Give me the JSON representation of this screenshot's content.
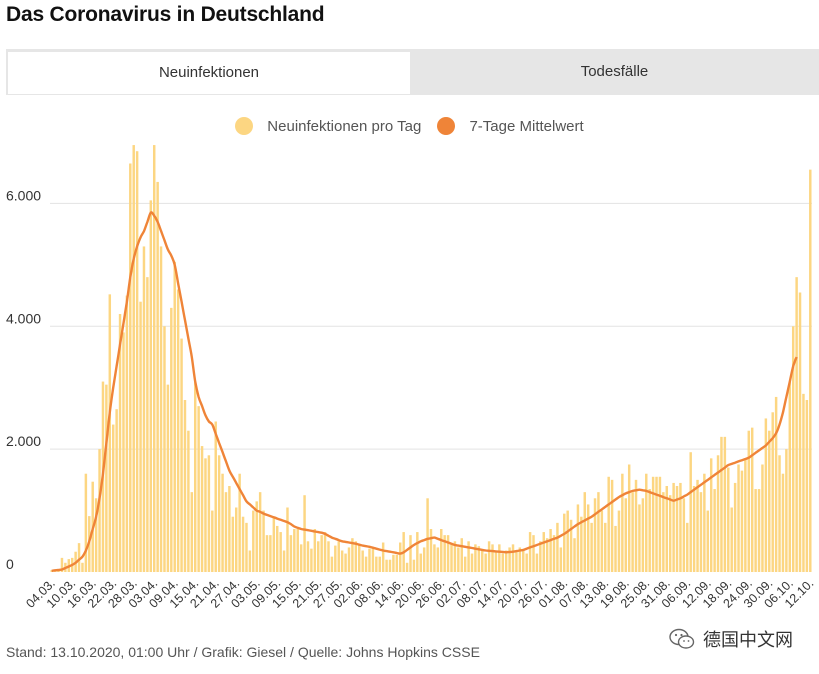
{
  "title": "Das Coronavirus in Deutschland",
  "tabs": [
    {
      "label": "Neuinfektionen",
      "active": true
    },
    {
      "label": "Todesfälle",
      "active": false
    }
  ],
  "legend": [
    {
      "label": "Neuinfektionen pro Tag",
      "color": "#fcd682"
    },
    {
      "label": "7-Tage Mittelwert",
      "color": "#ef8438"
    }
  ],
  "colors": {
    "bar": "#fcd682",
    "line": "#ef8438",
    "grid": "#e3e3e3",
    "axis_text": "#333333"
  },
  "footer": "Stand: 13.10.2020, 01:00 Uhr / Grafik: Giesel / Quelle: Johns Hopkins CSSE",
  "watermark": {
    "text": "德国中文网",
    "icon": "wechat-icon"
  },
  "chart_data": {
    "type": "bar",
    "title": "Das Coronavirus in Deutschland",
    "xlabel": "",
    "ylabel": "",
    "start_date": "2020-03-04",
    "ylim": [
      0,
      7000
    ],
    "y_ticks": [
      0,
      2000,
      4000,
      6000
    ],
    "y_tick_labels": [
      "0",
      "2.000",
      "4.000",
      "6.000"
    ],
    "x_tick_every": 6,
    "x_tick_labels": [
      "04.03.",
      "10.03.",
      "16.03.",
      "22.03.",
      "28.03.",
      "03.04.",
      "09.04.",
      "15.04.",
      "21.04.",
      "27.04.",
      "03.05.",
      "09.05.",
      "15.05.",
      "21.05.",
      "27.05.",
      "02.06.",
      "08.06.",
      "14.06.",
      "20.06.",
      "26.06.",
      "02.07.",
      "08.07.",
      "14.07.",
      "20.07.",
      "26.07.",
      "01.08.",
      "07.08.",
      "13.08.",
      "19.08.",
      "25.08.",
      "31.08.",
      "06.09.",
      "12.09.",
      "18.09.",
      "24.09.",
      "30.09.",
      "06.10.",
      "12.10."
    ],
    "series": [
      {
        "name": "Neuinfektionen pro Tag",
        "type": "bar",
        "values": [
          30,
          40,
          40,
          230,
          150,
          210,
          230,
          330,
          470,
          150,
          1600,
          910,
          1470,
          1200,
          2000,
          3100,
          3050,
          4520,
          2400,
          2650,
          4200,
          3900,
          4500,
          6650,
          6950,
          6850,
          4400,
          5300,
          4800,
          6050,
          6950,
          6350,
          5300,
          4000,
          3050,
          4300,
          5050,
          4600,
          3800,
          2800,
          2300,
          1300,
          3100,
          2700,
          2050,
          1850,
          1900,
          1000,
          2450,
          1900,
          1600,
          1300,
          1400,
          900,
          1050,
          1600,
          900,
          800,
          350,
          1000,
          1150,
          1300,
          1000,
          600,
          600,
          900,
          750,
          650,
          350,
          1050,
          600,
          700,
          700,
          450,
          1250,
          500,
          380,
          700,
          500,
          600,
          650,
          500,
          250,
          430,
          500,
          350,
          300,
          400,
          550,
          500,
          450,
          350,
          250,
          380,
          400,
          250,
          250,
          480,
          200,
          200,
          280,
          280,
          480,
          650,
          150,
          600,
          200,
          650,
          300,
          400,
          1200,
          700,
          450,
          400,
          700,
          600,
          600,
          450,
          500,
          400,
          550,
          250,
          500,
          300,
          450,
          420,
          350,
          300,
          500,
          450,
          350,
          450,
          300,
          350,
          400,
          450,
          350,
          400,
          350,
          300,
          650,
          600,
          300,
          500,
          650,
          550,
          700,
          600,
          800,
          400,
          950,
          1000,
          850,
          550,
          1100,
          900,
          1300,
          1100,
          800,
          1200,
          1300,
          1000,
          800,
          1550,
          1500,
          750,
          1000,
          1600,
          1200,
          1750,
          1300,
          1500,
          1100,
          1200,
          1600,
          1350,
          1550,
          1550,
          1550,
          1300,
          1400,
          1250,
          1450,
          1400,
          1450,
          1200,
          800,
          1950,
          1400,
          1500,
          1300,
          1600,
          1000,
          1850,
          1350,
          1900,
          2200,
          2200,
          1700,
          1050,
          1450,
          1750,
          1650,
          1850,
          2300,
          2350,
          1350,
          1350,
          1750,
          2500,
          2300,
          2600,
          2850,
          1900,
          1600,
          2000,
          3100,
          4000,
          4800,
          4550,
          2900,
          2800,
          6550
        ]
      },
      {
        "name": "7-Tage Mittelwert",
        "type": "line",
        "values": [
          20,
          27,
          33,
          40,
          65,
          90,
          115,
          150,
          200,
          250,
          350,
          500,
          700,
          900,
          1200,
          1600,
          2100,
          2600,
          3000,
          3350,
          3700,
          4050,
          4400,
          4800,
          5100,
          5300,
          5450,
          5550,
          5700,
          5850,
          5800,
          5700,
          5550,
          5400,
          5250,
          5150,
          5000,
          4700,
          4400,
          4100,
          3800,
          3500,
          3100,
          2850,
          2700,
          2550,
          2450,
          2400,
          2250,
          2100,
          1950,
          1800,
          1650,
          1550,
          1450,
          1350,
          1250,
          1150,
          1100,
          1050,
          1000,
          980,
          950,
          930,
          910,
          890,
          870,
          850,
          830,
          810,
          780,
          740,
          720,
          700,
          690,
          680,
          670,
          660,
          650,
          640,
          620,
          590,
          560,
          540,
          520,
          500,
          490,
          480,
          470,
          460,
          445,
          430,
          420,
          410,
          395,
          380,
          365,
          350,
          340,
          330,
          320,
          310,
          300,
          320,
          360,
          400,
          440,
          470,
          500,
          520,
          540,
          550,
          560,
          540,
          520,
          500,
          480,
          460,
          440,
          430,
          420,
          410,
          400,
          390,
          380,
          370,
          360,
          350,
          345,
          340,
          335,
          330,
          325,
          320,
          325,
          330,
          340,
          350,
          360,
          380,
          400,
          420,
          440,
          460,
          480,
          500,
          520,
          540,
          560,
          590,
          620,
          660,
          700,
          740,
          780,
          810,
          840,
          870,
          900,
          940,
          980,
          1020,
          1060,
          1100,
          1140,
          1180,
          1220,
          1250,
          1280,
          1300,
          1320,
          1330,
          1340,
          1330,
          1320,
          1300,
          1280,
          1260,
          1240,
          1220,
          1200,
          1180,
          1160,
          1180,
          1200,
          1230,
          1260,
          1300,
          1340,
          1380,
          1420,
          1460,
          1500,
          1540,
          1580,
          1620,
          1660,
          1700,
          1740,
          1760,
          1780,
          1800,
          1820,
          1840,
          1860,
          1900,
          1940,
          1980,
          2020,
          2060,
          2120,
          2180,
          2260,
          2400,
          2600,
          2850,
          3100,
          3350,
          3500
        ]
      }
    ]
  }
}
